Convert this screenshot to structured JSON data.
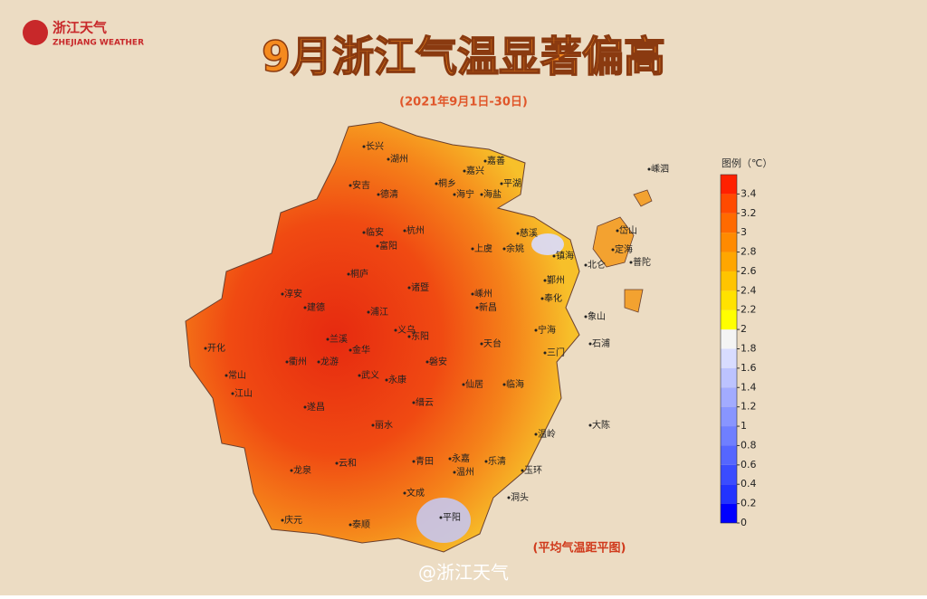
{
  "logo": {
    "name": "浙江天气",
    "subname": "ZHEJIANG WEATHER"
  },
  "title": "9月浙江气温显著偏高",
  "subtitle": "(2021年9月1日-30日)",
  "legend": {
    "title": "图例（℃）",
    "ticks": [
      0,
      0.2,
      0.4,
      0.6,
      0.8,
      1,
      1.2,
      1.4,
      1.6,
      1.8,
      2,
      2.2,
      2.4,
      2.6,
      2.8,
      3,
      3.2,
      3.4
    ],
    "colors": [
      "#0000ff",
      "#2233ff",
      "#3a4cff",
      "#5566ff",
      "#6f7fff",
      "#8895ff",
      "#a2abff",
      "#bcc3ff",
      "#d8dcff",
      "#f4f4f4",
      "#ffff00",
      "#ffe200",
      "#ffc400",
      "#ffa600",
      "#ff8a00",
      "#ff6a00",
      "#ff4a00",
      "#ff2000"
    ]
  },
  "caption": "(平均气温距平图)",
  "watermark": "@浙江天气",
  "cities": [
    "长兴",
    "湖州",
    "嘉兴",
    "嘉善",
    "桐乡",
    "平湖",
    "海盐",
    "海宁",
    "德清",
    "安吉",
    "杭州",
    "临安",
    "富阳",
    "桐庐",
    "上虞",
    "余姚",
    "慈溪",
    "镇海",
    "北仑",
    "岱山",
    "嵊泗",
    "定海",
    "普陀",
    "鄞州",
    "奉化",
    "宁海",
    "象山",
    "石浦",
    "三门",
    "天台",
    "新昌",
    "嵊州",
    "诸暨",
    "建德",
    "淳安",
    "浦江",
    "义乌",
    "东阳",
    "兰溪",
    "金华",
    "龙游",
    "衢州",
    "开化",
    "常山",
    "江山",
    "武义",
    "永康",
    "磐安",
    "仙居",
    "临海",
    "温岭",
    "玉环",
    "大陈",
    "洞头",
    "乐清",
    "永嘉",
    "温州",
    "平阳",
    "文成",
    "青田",
    "丽水",
    "缙云",
    "遂昌",
    "云和",
    "龙泉",
    "庆元",
    "泰顺"
  ]
}
